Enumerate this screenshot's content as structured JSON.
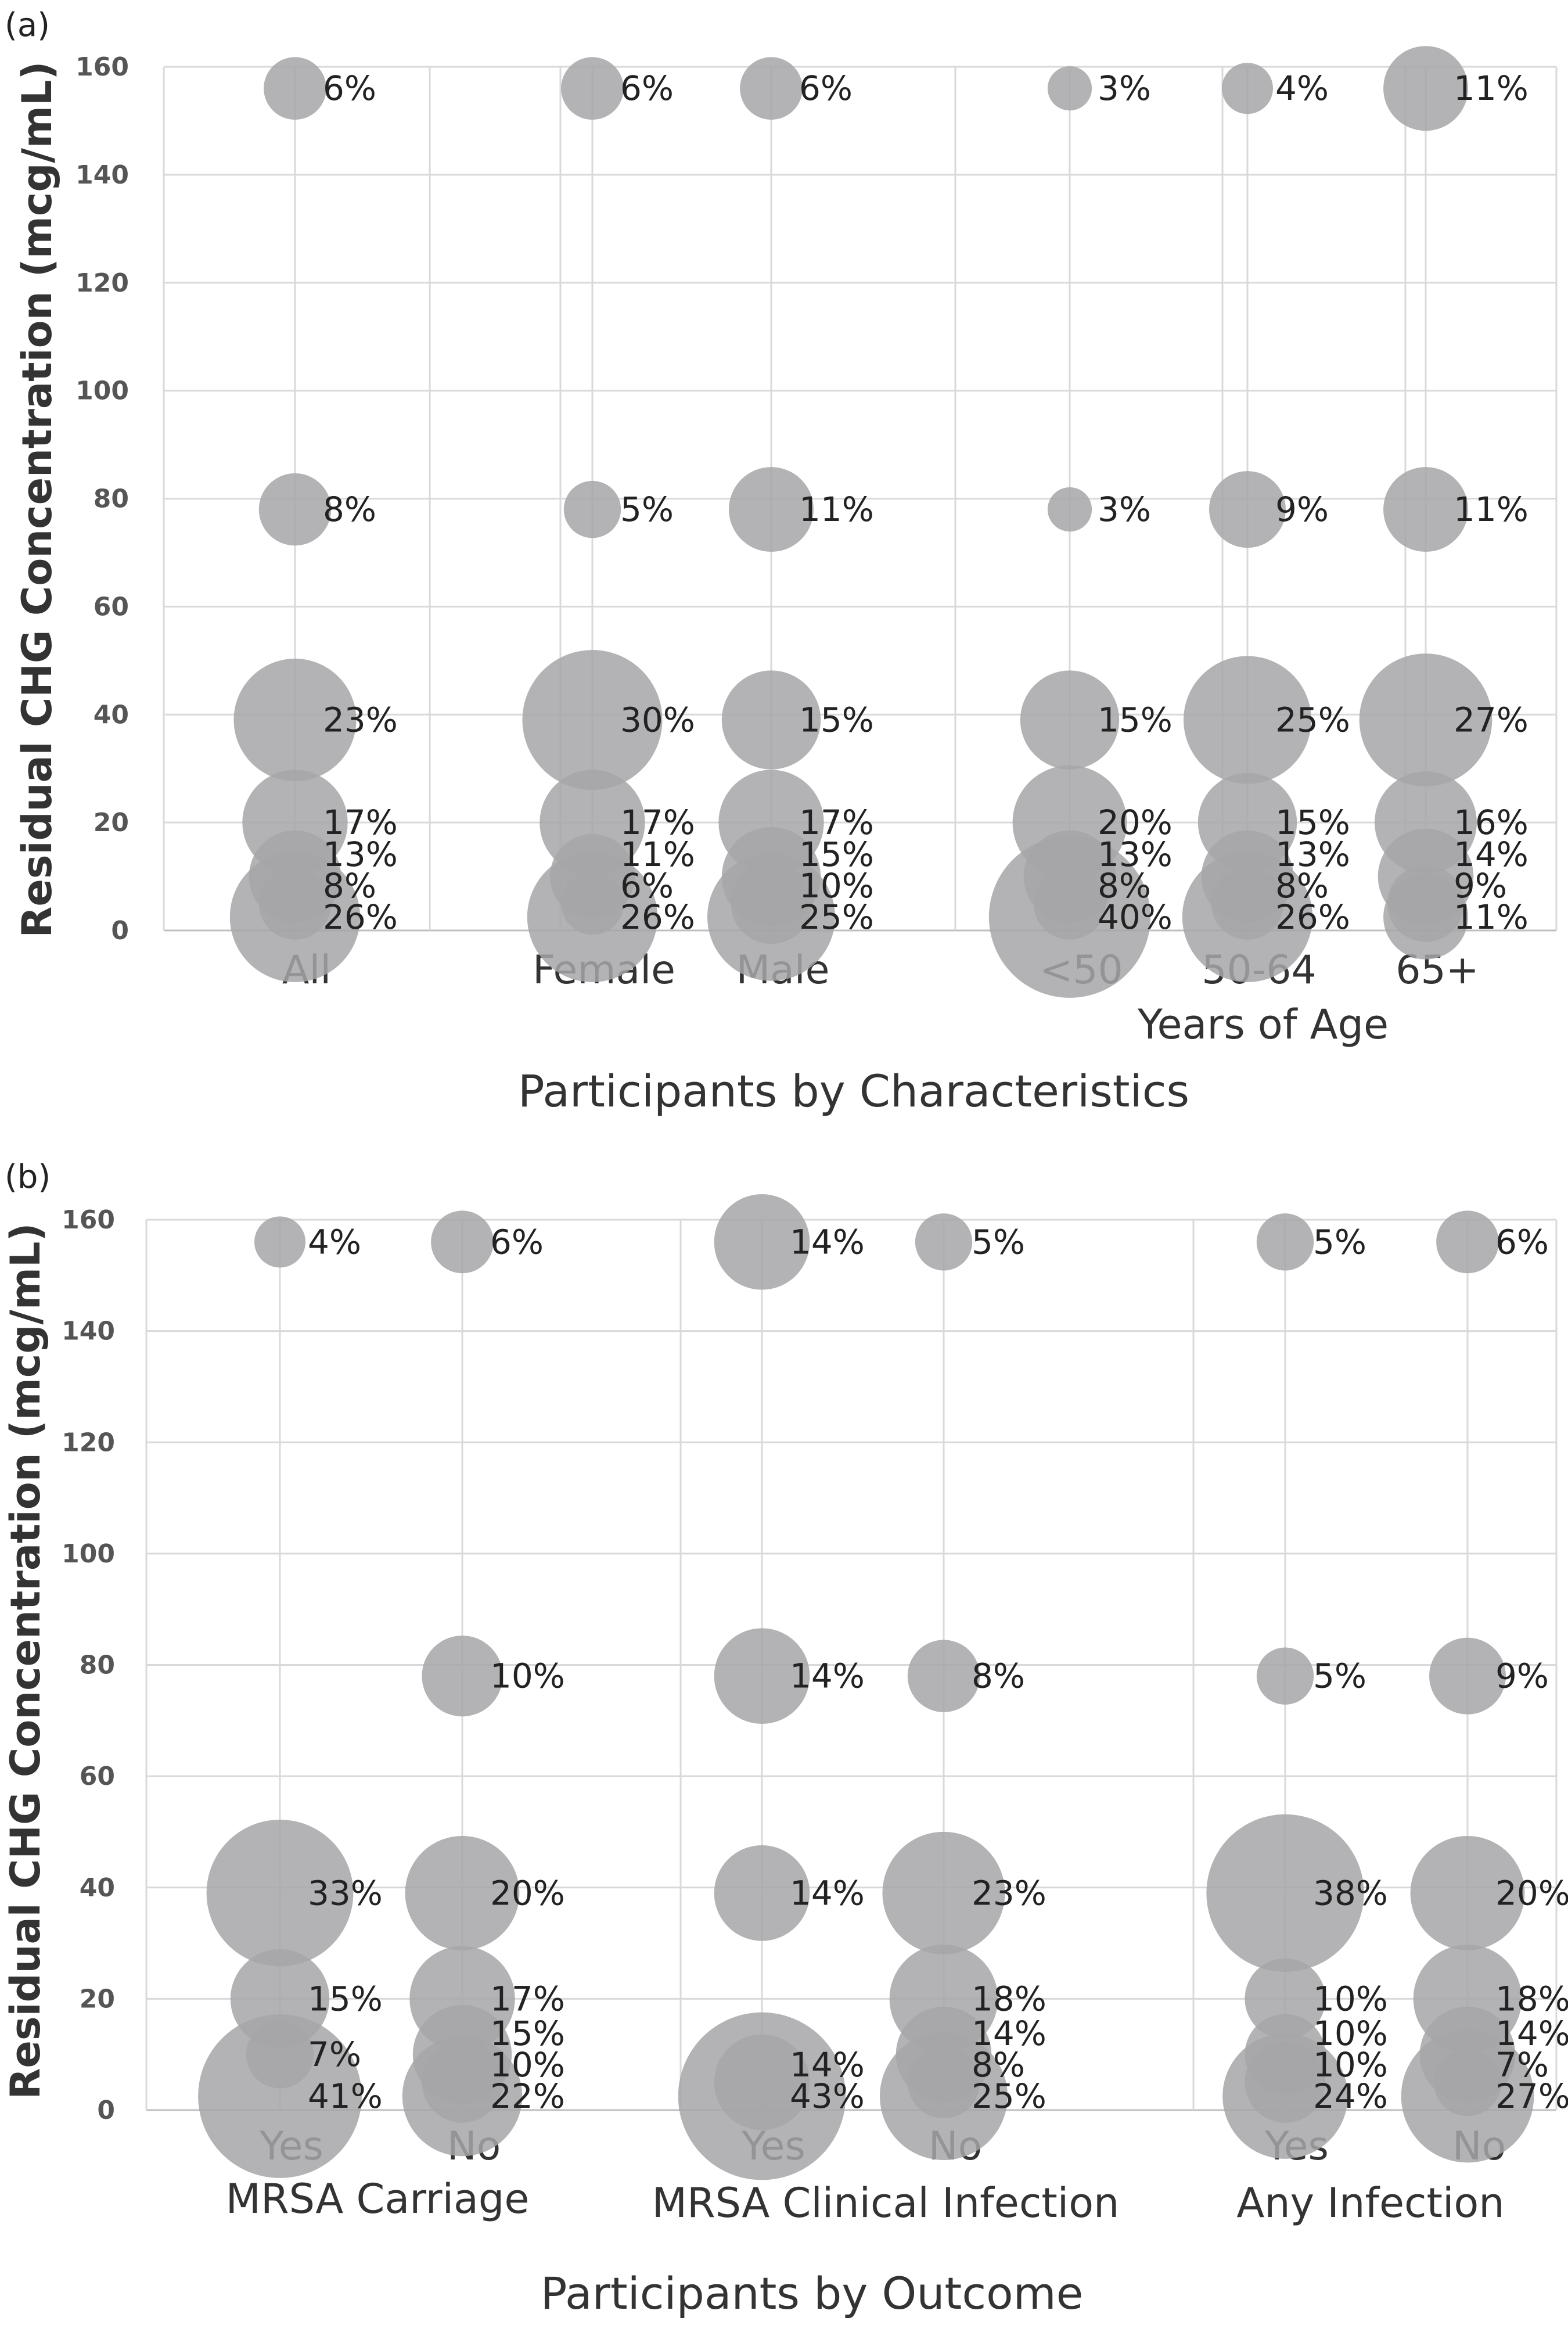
{
  "chart_data": [
    {
      "type": "scatter",
      "panel_label": "(a)",
      "ylabel": "Residual CHG  Concentration (mcg/mL)",
      "xlabel": "Participants by Characteristics",
      "ylim": [
        0,
        160
      ],
      "yticks": [
        0,
        20,
        40,
        60,
        80,
        100,
        120,
        140,
        160
      ],
      "concentration_levels": [
        2.5,
        5,
        10,
        20,
        39,
        78,
        156
      ],
      "categories": [
        {
          "label": "All",
          "values": [
            26,
            8,
            13,
            17,
            23,
            8,
            6
          ]
        },
        {
          "label": "Female",
          "values": [
            26,
            6,
            11,
            17,
            30,
            5,
            6
          ]
        },
        {
          "label": "Male",
          "values": [
            25,
            10,
            15,
            17,
            15,
            11,
            6
          ]
        },
        {
          "label": "<50",
          "values": [
            40,
            8,
            13,
            20,
            15,
            3,
            3
          ]
        },
        {
          "label": "50-64",
          "values": [
            26,
            8,
            13,
            15,
            25,
            9,
            4
          ]
        },
        {
          "label": "65+",
          "values": [
            11,
            9,
            14,
            16,
            27,
            11,
            11
          ]
        }
      ],
      "group_labels": [
        {
          "label": "Years of Age",
          "spans": [
            "<50",
            "50-64",
            "65+"
          ]
        }
      ]
    },
    {
      "type": "scatter",
      "panel_label": "(b)",
      "ylabel": "Residual CHG  Concentration (mcg/mL)",
      "xlabel": "Participants by Outcome",
      "ylim": [
        0,
        160
      ],
      "yticks": [
        0,
        20,
        40,
        60,
        80,
        100,
        120,
        140,
        160
      ],
      "concentration_levels": [
        2.5,
        5,
        10,
        20,
        39,
        78,
        156
      ],
      "categories": [
        {
          "label": "Yes",
          "values": [
            41,
            null,
            7,
            15,
            33,
            null,
            4
          ]
        },
        {
          "label": "No",
          "values": [
            22,
            10,
            15,
            17,
            20,
            10,
            6
          ]
        },
        {
          "label": "Yes",
          "values": [
            43,
            14,
            null,
            null,
            14,
            14,
            14
          ]
        },
        {
          "label": "No",
          "values": [
            25,
            8,
            14,
            18,
            23,
            8,
            5
          ]
        },
        {
          "label": "Yes",
          "values": [
            24,
            10,
            10,
            10,
            38,
            5,
            5
          ]
        },
        {
          "label": "No",
          "values": [
            27,
            7,
            14,
            18,
            20,
            9,
            6
          ]
        }
      ],
      "group_labels": [
        {
          "label": "MRSA Carriage",
          "spans": [
            0,
            1
          ]
        },
        {
          "label": "MRSA Clinical Infection",
          "spans": [
            2,
            3
          ]
        },
        {
          "label": "Any Infection",
          "spans": [
            4,
            5
          ]
        }
      ]
    }
  ]
}
